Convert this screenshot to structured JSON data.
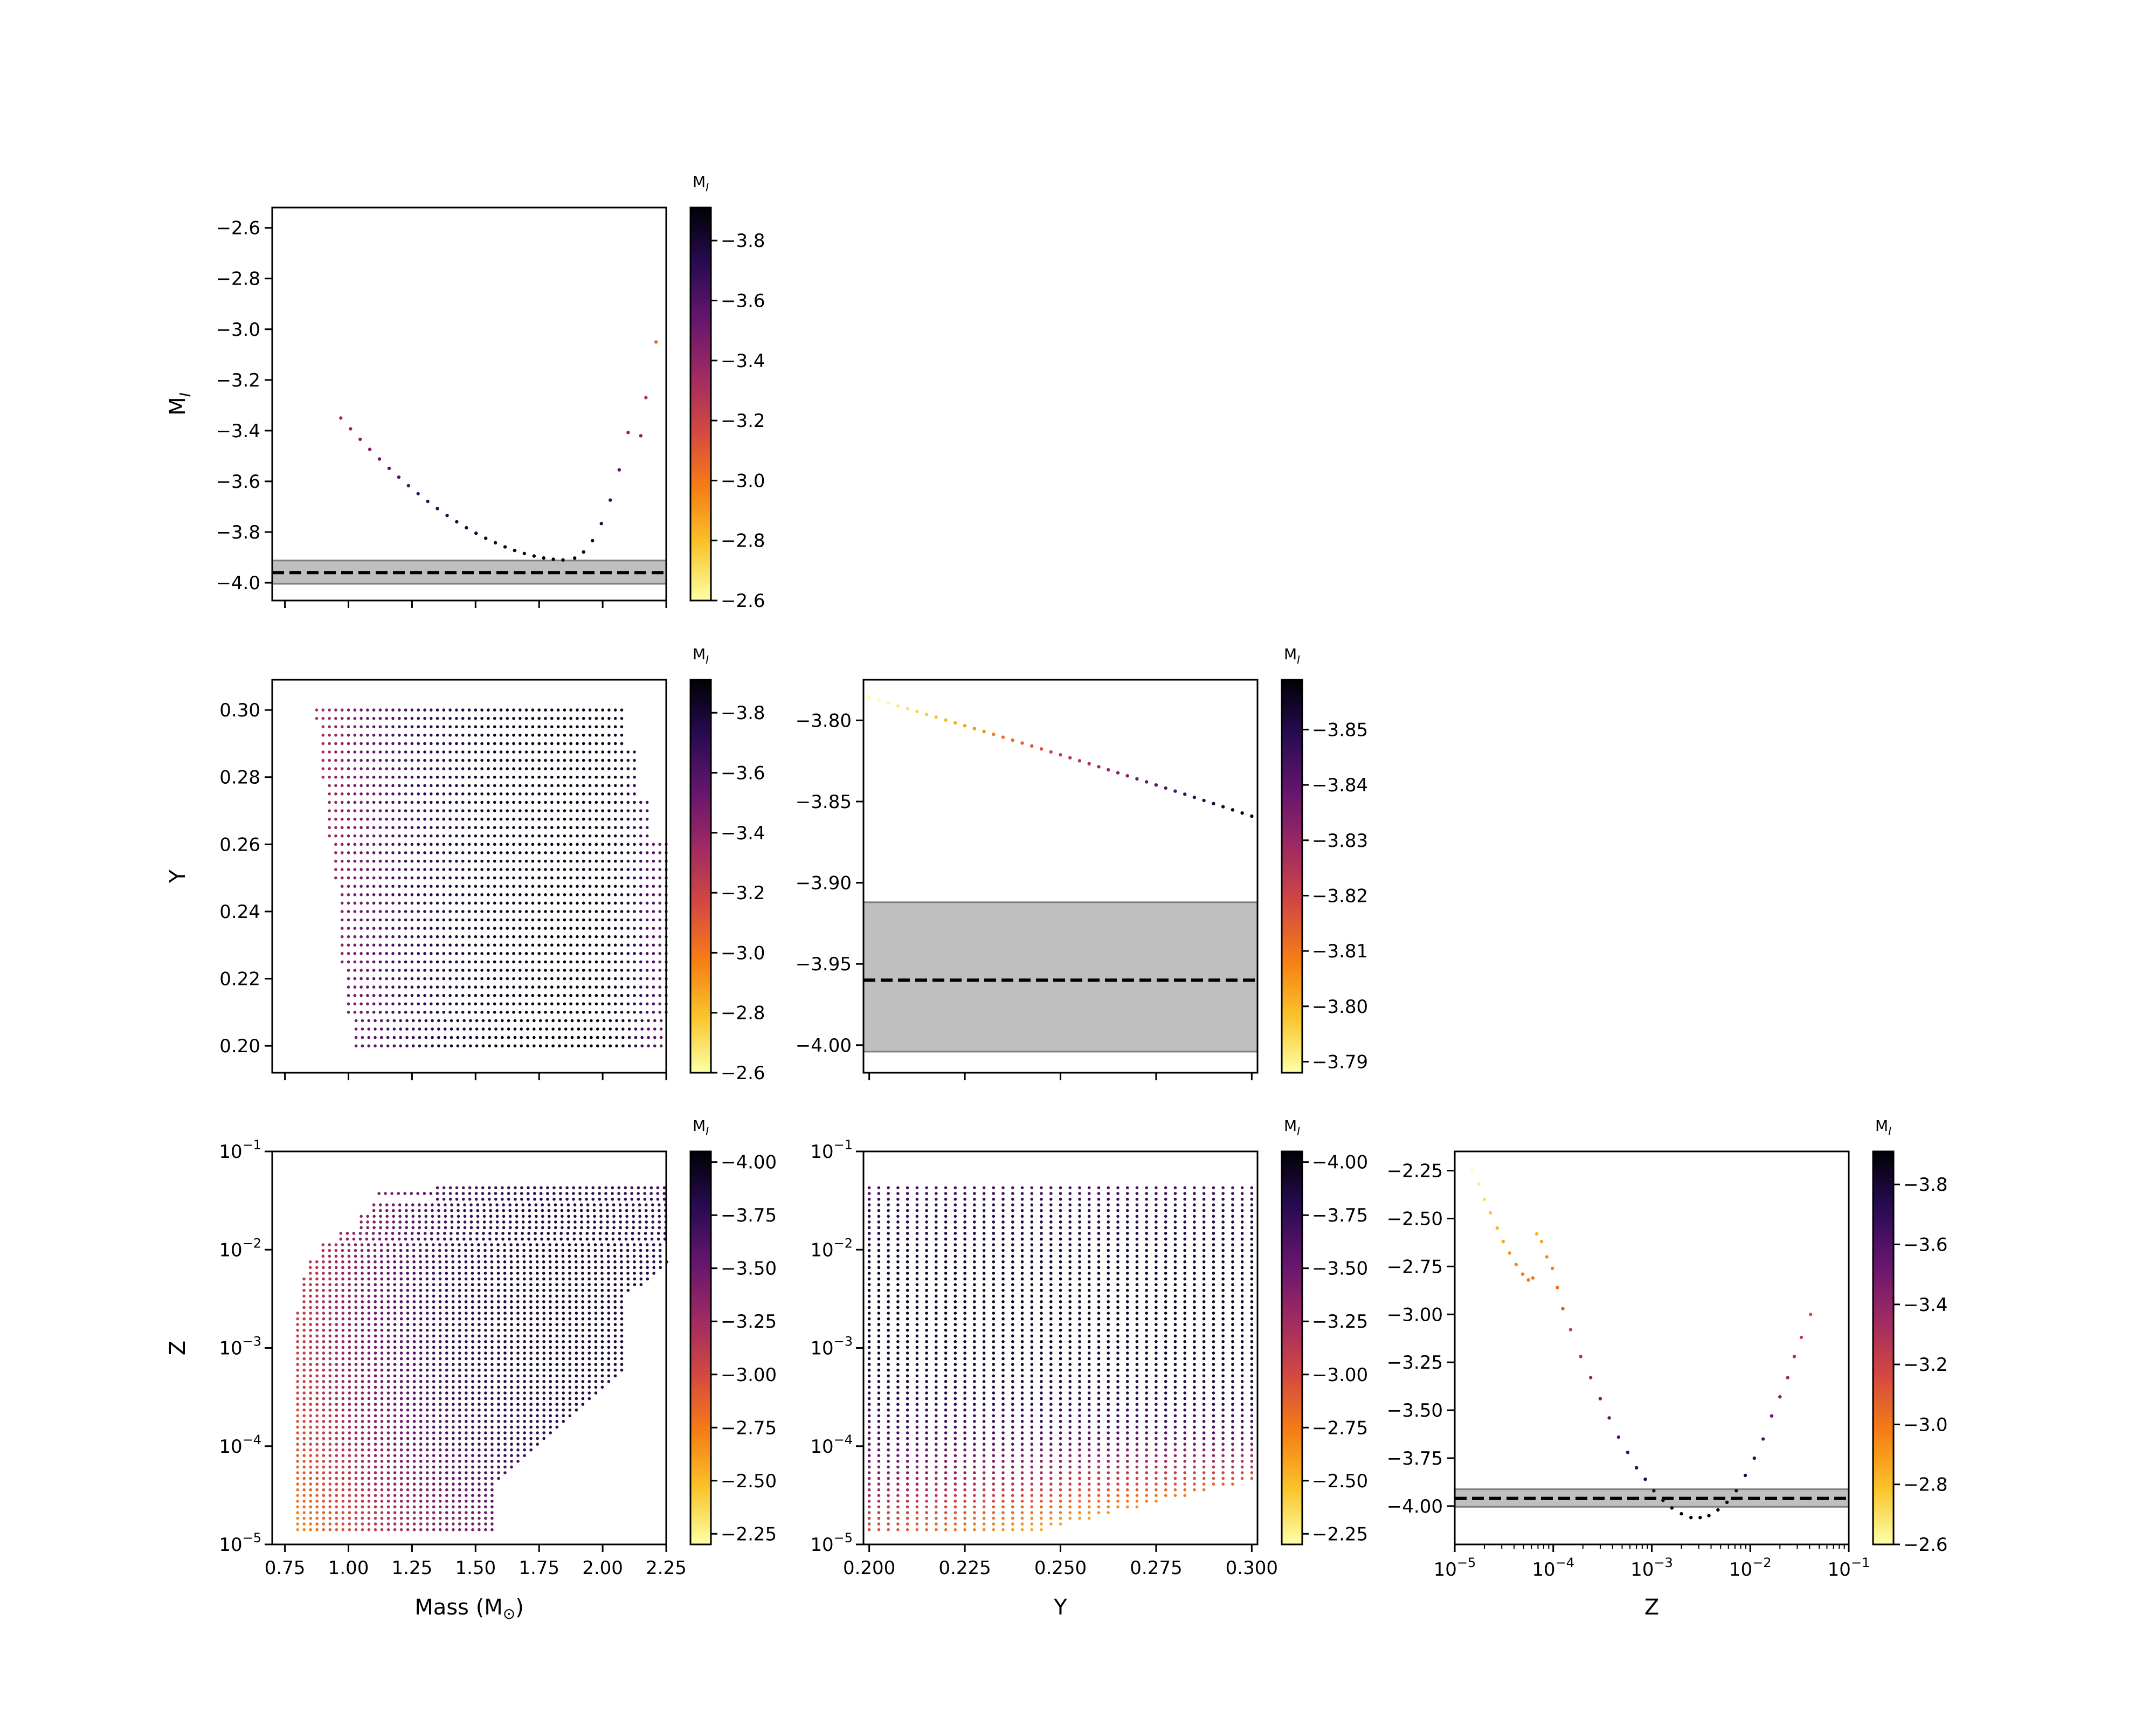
{
  "figure": {
    "y_axis_label_mi": "M",
    "y_axis_label_mi_sub": "I",
    "colorbar_label": "M",
    "colorbar_label_sub": "I",
    "x_axis_label_mass": "Mass (M",
    "x_axis_label_mass_suffix": ")",
    "y_axis_label_y": "Y",
    "y_axis_label_z": "Z",
    "x_axis_label_y": "Y",
    "x_axis_label_z": "Z",
    "observed_MI": -3.96,
    "observed_MI_band": [
      -4.004,
      -3.912
    ],
    "colormap": [
      "#fcffa4",
      "#fac228",
      "#f57d15",
      "#d44842",
      "#9f2a63",
      "#65156e",
      "#280b53",
      "#000004"
    ]
  },
  "chart_data": [
    {
      "panel": "MI-vs-Mass",
      "type": "scatter",
      "xlabel": "",
      "ylabel": "M_I",
      "xlim": [
        0.7,
        2.25
      ],
      "ylim": [
        -4.07,
        -2.52
      ],
      "x_ticks": [
        "0.75",
        "1.00",
        "1.25",
        "1.50",
        "1.75",
        "2.00",
        "2.25"
      ],
      "x_tick_labels_shown": false,
      "y_ticks": [
        "−2.6",
        "−2.8",
        "−3.0",
        "−3.2",
        "−3.4",
        "−3.6",
        "−3.8",
        "−4.0"
      ],
      "hline": -3.96,
      "band": [
        -4.004,
        -3.912
      ],
      "points": "curve: M_I minimum ≈ -3.91 near Mass 1.85; -3.35 at 0.97; -3.05 at 2.21",
      "colorbar": {
        "range": [
          -3.91,
          -2.6
        ],
        "ticks": [
          "−2.6",
          "−2.8",
          "−3.0",
          "−3.2",
          "−3.4",
          "−3.6",
          "−3.8"
        ]
      }
    },
    {
      "panel": "Y-vs-Mass",
      "type": "scatter",
      "xlabel": "",
      "ylabel": "Y",
      "xlim": [
        0.7,
        2.25
      ],
      "ylim": [
        0.192,
        0.309
      ],
      "x_ticks": [
        "0.75",
        "1.00",
        "1.25",
        "1.50",
        "1.75",
        "2.00",
        "2.25"
      ],
      "x_tick_labels_shown": false,
      "y_ticks": [
        "0.30",
        "0.28",
        "0.26",
        "0.24",
        "0.22",
        "0.20"
      ],
      "points": "grid Mass 0.87–2.25 step 0.025 × Y 0.20–0.30 step 0.0025",
      "colorbar": {
        "range": [
          -3.91,
          -2.6
        ],
        "ticks": [
          "−2.6",
          "−2.8",
          "−3.0",
          "−3.2",
          "−3.4",
          "−3.6",
          "−3.8"
        ]
      }
    },
    {
      "panel": "MI-vs-Y",
      "type": "scatter",
      "xlabel": "",
      "ylabel": "",
      "xlim": [
        0.1985,
        0.3015
      ],
      "ylim": [
        -4.017,
        -3.775
      ],
      "x_ticks": [
        "0.200",
        "0.225",
        "0.250",
        "0.275",
        "0.300"
      ],
      "x_tick_labels_shown": false,
      "y_ticks": [
        "−3.80",
        "−3.85",
        "−3.90",
        "−3.95",
        "−4.00"
      ],
      "hline": -3.96,
      "band": [
        -4.004,
        -3.912
      ],
      "points": "line from (0.200, -3.786) to (0.300, -3.859)",
      "colorbar": {
        "range": [
          -3.859,
          -3.788
        ],
        "ticks": [
          "−3.79",
          "−3.80",
          "−3.81",
          "−3.82",
          "−3.83",
          "−3.84",
          "−3.85"
        ]
      }
    },
    {
      "panel": "Z-vs-Mass",
      "type": "scatter",
      "xlabel": "Mass (M_sun)",
      "ylabel": "Z",
      "xlim": [
        0.7,
        2.25
      ],
      "ylim": [
        1e-05,
        0.1
      ],
      "yscale": "log",
      "x_ticks": [
        "0.75",
        "1.00",
        "1.25",
        "1.50",
        "1.75",
        "2.00",
        "2.25"
      ],
      "y_ticks": [
        "10^-1",
        "10^-2",
        "10^-3",
        "10^-4",
        "10^-5"
      ],
      "points": "grid Mass 0.80–2.25 × log Z −4.85 to −1.38",
      "colorbar": {
        "range": [
          -4.05,
          -2.2
        ],
        "ticks": [
          "−2.25",
          "−2.50",
          "−2.75",
          "−3.00",
          "−3.25",
          "−3.50",
          "−3.75",
          "−4.00"
        ]
      }
    },
    {
      "panel": "Z-vs-Y",
      "type": "scatter",
      "xlabel": "Y",
      "ylabel": "",
      "xlim": [
        0.1985,
        0.3015
      ],
      "ylim": [
        1e-05,
        0.1
      ],
      "yscale": "log",
      "x_ticks": [
        "0.200",
        "0.225",
        "0.250",
        "0.275",
        "0.300"
      ],
      "y_ticks": [
        "10^-1",
        "10^-2",
        "10^-3",
        "10^-4",
        "10^-5"
      ],
      "points": "grid Y 0.20–0.30 × log Z −4.85 to −1.38",
      "colorbar": {
        "range": [
          -4.05,
          -2.2
        ],
        "ticks": [
          "−2.25",
          "−2.50",
          "−2.75",
          "−3.00",
          "−3.25",
          "−3.50",
          "−3.75",
          "−4.00"
        ]
      }
    },
    {
      "panel": "MI-vs-Z",
      "type": "scatter",
      "xlabel": "Z",
      "ylabel": "",
      "xlim": [
        1e-05,
        0.1
      ],
      "xscale": "log",
      "ylim": [
        -4.2,
        -2.15
      ],
      "x_ticks": [
        "10^-5",
        "10^-4",
        "10^-3",
        "10^-2",
        "10^-1"
      ],
      "y_ticks": [
        "−2.25",
        "−2.50",
        "−2.75",
        "−3.00",
        "−3.25",
        "−3.50",
        "−3.75",
        "−4.00"
      ],
      "hline": -3.96,
      "band": [
        -4.004,
        -3.912
      ],
      "points": "curve: −2.25 at Z 1.5e-5; minimum ≈ −4.06 near Z 3e-3; −3.0 at Z 0.041",
      "colorbar": {
        "range": [
          -3.91,
          -2.6
        ],
        "ticks": [
          "−2.6",
          "−2.8",
          "−3.0",
          "−3.2",
          "−3.4",
          "−3.6",
          "−3.8"
        ]
      }
    }
  ]
}
